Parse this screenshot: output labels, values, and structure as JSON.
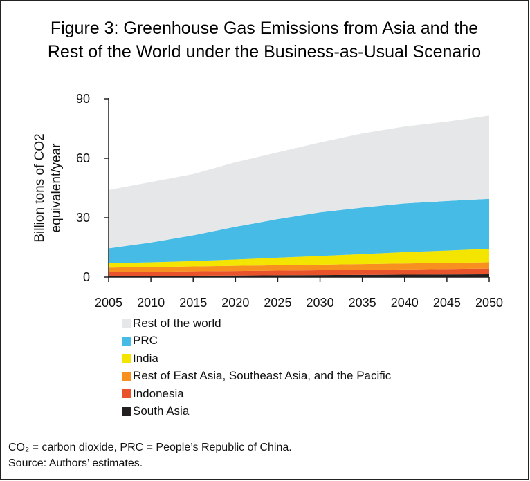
{
  "figure": {
    "title_line1": "Figure 3: Greenhouse Gas Emissions from Asia and the",
    "title_line2": "Rest of the World under the Business-as-Usual Scenario"
  },
  "notes": {
    "abbrev": "CO₂ = carbon dioxide, PRC = People’s Republic of China.",
    "source": "Source: Authors’ estimates."
  },
  "chart_data": {
    "type": "area",
    "stacked": true,
    "x": [
      2005,
      2010,
      2015,
      2020,
      2025,
      2030,
      2035,
      2040,
      2045,
      2050
    ],
    "ylabel_line1": "Billion tons of CO2",
    "ylabel_line2": "equivalent/year",
    "ylim": [
      0,
      90
    ],
    "yticks": [
      0,
      30,
      60,
      90
    ],
    "grid": false,
    "legend_position": "bottom",
    "series": [
      {
        "name": "South Asia",
        "color": "#231f20",
        "values": [
          0.5,
          0.6,
          0.7,
          0.8,
          0.9,
          1.0,
          1.1,
          1.2,
          1.3,
          1.4
        ]
      },
      {
        "name": "Indonesia",
        "color": "#e8532b",
        "values": [
          2.0,
          2.1,
          2.2,
          2.3,
          2.4,
          2.5,
          2.6,
          2.7,
          2.8,
          2.9
        ]
      },
      {
        "name": "Rest of East Asia, Southeast Asia, and the Pacific",
        "color": "#f7901e",
        "values": [
          2.3,
          2.4,
          2.5,
          2.6,
          2.7,
          2.8,
          2.9,
          3.0,
          3.1,
          3.2
        ]
      },
      {
        "name": "India",
        "color": "#f3e500",
        "values": [
          2.2,
          2.4,
          2.7,
          3.2,
          3.8,
          4.4,
          5.0,
          5.7,
          6.2,
          6.8
        ]
      },
      {
        "name": "PRC",
        "color": "#45bbe5",
        "values": [
          7.5,
          10.0,
          13.0,
          16.5,
          19.5,
          22.0,
          23.5,
          24.6,
          25.0,
          25.2
        ]
      },
      {
        "name": "Rest of the world",
        "color": "#e6e7e8",
        "values": [
          29.5,
          30.5,
          30.9,
          32.6,
          33.7,
          35.3,
          37.4,
          38.8,
          40.1,
          42.0
        ]
      }
    ],
    "legend_order": [
      "Rest of the world",
      "PRC",
      "India",
      "Rest of East Asia, Southeast Asia, and the Pacific",
      "Indonesia",
      "South Asia"
    ]
  }
}
